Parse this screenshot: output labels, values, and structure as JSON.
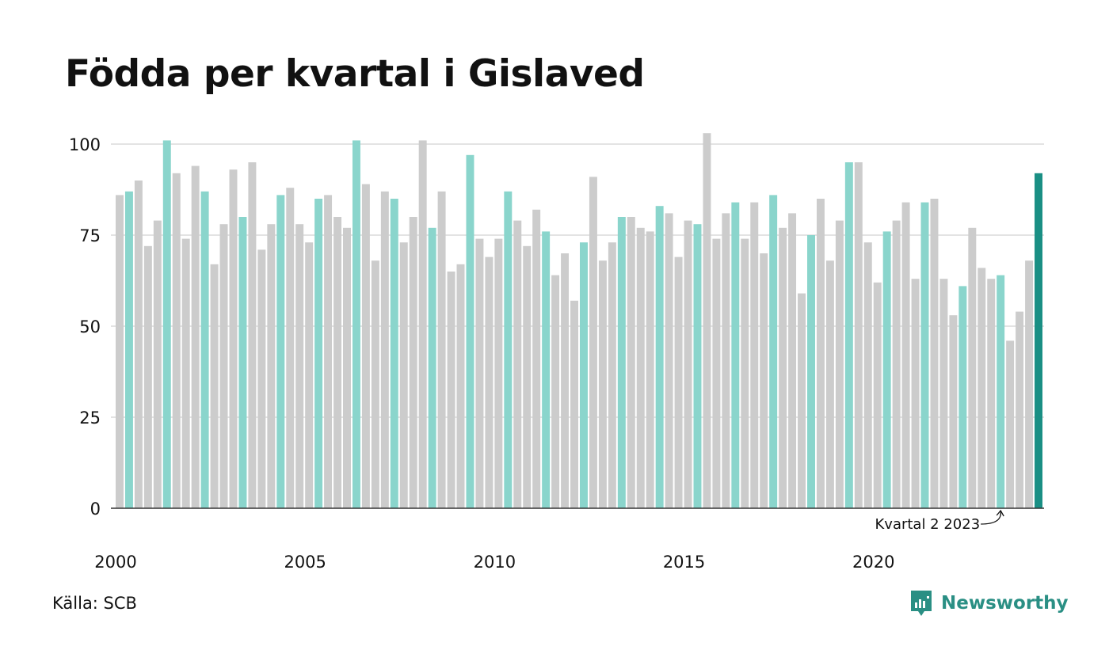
{
  "title": "Födda per kvartal i Gislaved",
  "source": "Källa: SCB",
  "brand": {
    "name": "Newsworthy",
    "icon": "newsworthy-logo-icon",
    "color": "#2a8f84"
  },
  "chart_data": {
    "type": "bar",
    "title": "Födda per kvartal i Gislaved",
    "xlabel": "",
    "ylabel": "",
    "ylim": [
      0,
      100
    ],
    "yticks": [
      0,
      25,
      50,
      75,
      100
    ],
    "xticks": [
      "2000",
      "2005",
      "2010",
      "2015",
      "2020"
    ],
    "grid": "horizontal",
    "colors": {
      "default": "#cccccc",
      "quarter2": "#8ad5cc",
      "latest": "#1a8f84",
      "axis": "#333333",
      "grid": "#e3e3e3"
    },
    "highlight_quarter": 2,
    "annotation": {
      "text": "Kvartal 2 2023",
      "target": "2023 Q2"
    },
    "categories": [
      "2000 Q1",
      "2000 Q2",
      "2000 Q3",
      "2000 Q4",
      "2001 Q1",
      "2001 Q2",
      "2001 Q3",
      "2001 Q4",
      "2002 Q1",
      "2002 Q2",
      "2002 Q3",
      "2002 Q4",
      "2003 Q1",
      "2003 Q2",
      "2003 Q3",
      "2003 Q4",
      "2004 Q1",
      "2004 Q2",
      "2004 Q3",
      "2004 Q4",
      "2005 Q1",
      "2005 Q2",
      "2005 Q3",
      "2005 Q4",
      "2006 Q1",
      "2006 Q2",
      "2006 Q3",
      "2006 Q4",
      "2007 Q1",
      "2007 Q2",
      "2007 Q3",
      "2007 Q4",
      "2008 Q1",
      "2008 Q2",
      "2008 Q3",
      "2008 Q4",
      "2009 Q1",
      "2009 Q2",
      "2009 Q3",
      "2009 Q4",
      "2010 Q1",
      "2010 Q2",
      "2010 Q3",
      "2010 Q4",
      "2011 Q1",
      "2011 Q2",
      "2011 Q3",
      "2011 Q4",
      "2012 Q1",
      "2012 Q2",
      "2012 Q3",
      "2012 Q4",
      "2013 Q1",
      "2013 Q2",
      "2013 Q3",
      "2013 Q4",
      "2014 Q1",
      "2014 Q2",
      "2014 Q3",
      "2014 Q4",
      "2015 Q1",
      "2015 Q2",
      "2015 Q3",
      "2015 Q4",
      "2016 Q1",
      "2016 Q2",
      "2016 Q3",
      "2016 Q4",
      "2017 Q1",
      "2017 Q2",
      "2017 Q3",
      "2017 Q4",
      "2018 Q1",
      "2018 Q2",
      "2018 Q3",
      "2018 Q4",
      "2019 Q1",
      "2019 Q2",
      "2019 Q3",
      "2019 Q4",
      "2020 Q1",
      "2020 Q2",
      "2020 Q3",
      "2020 Q4",
      "2021 Q1",
      "2021 Q2",
      "2021 Q3",
      "2021 Q4",
      "2022 Q1",
      "2022 Q2",
      "2022 Q3",
      "2022 Q4",
      "2023 Q1",
      "2023 Q2",
      "2023 Q3",
      "2023 Q4",
      "2024 Q1",
      "2024 Q2"
    ],
    "values": [
      86,
      87,
      90,
      72,
      79,
      101,
      92,
      74,
      94,
      87,
      67,
      78,
      93,
      80,
      95,
      71,
      78,
      86,
      88,
      78,
      73,
      85,
      86,
      80,
      77,
      101,
      89,
      68,
      87,
      85,
      73,
      80,
      101,
      77,
      87,
      65,
      67,
      97,
      74,
      69,
      74,
      87,
      79,
      72,
      82,
      76,
      64,
      70,
      57,
      73,
      91,
      68,
      73,
      80,
      80,
      77,
      76,
      83,
      81,
      69,
      79,
      78,
      103,
      74,
      81,
      84,
      74,
      84,
      70,
      86,
      77,
      81,
      59,
      75,
      85,
      68,
      79,
      95,
      95,
      73,
      62,
      76,
      79,
      84,
      63,
      84,
      85,
      63,
      53,
      61,
      77,
      66,
      63,
      64,
      46,
      54,
      68,
      92
    ]
  }
}
